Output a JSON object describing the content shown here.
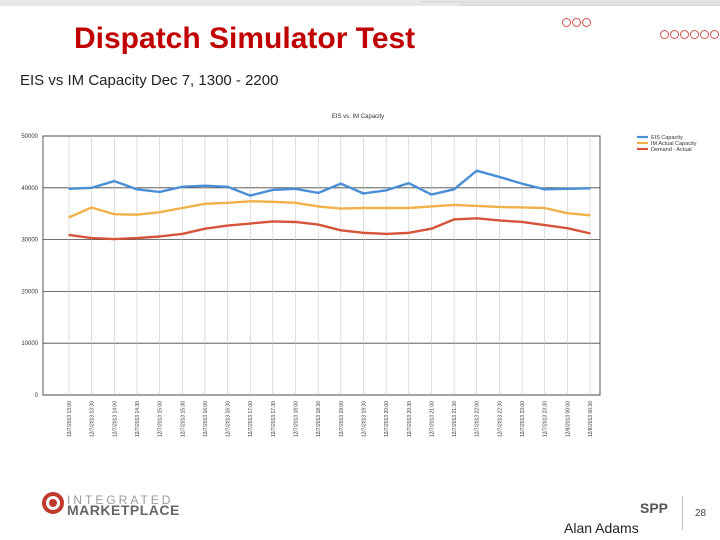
{
  "slide": {
    "title": "Dispatch Simulator Test",
    "subtitle": "EIS vs IM Capacity Dec 7, 1300 - 2200",
    "author": "Alan Adams",
    "page_number": "28",
    "logo_line1": "INTEGRATED",
    "logo_line2": "MARKETPLACE",
    "spp_logo": "SPP",
    "accent_color": "#c00000"
  },
  "chart_data": {
    "type": "line",
    "title": "EIS vs. IM Capacity",
    "xlabel": "",
    "ylabel": "",
    "ylim": [
      0,
      50000
    ],
    "yticks": [
      0,
      10000,
      20000,
      30000,
      40000,
      50000
    ],
    "grid": true,
    "legend_position": "top-right",
    "categories": [
      "12/7/2013 13:00",
      "12/7/2013 13:30",
      "12/7/2013 14:00",
      "12/7/2013 14:30",
      "12/7/2013 15:00",
      "12/7/2013 15:30",
      "12/7/2013 16:00",
      "12/7/2013 16:30",
      "12/7/2013 17:00",
      "12/7/2013 17:30",
      "12/7/2013 18:00",
      "12/7/2013 18:30",
      "12/7/2013 19:00",
      "12/7/2013 19:30",
      "12/7/2013 20:00",
      "12/7/2013 20:30",
      "12/7/2013 21:00",
      "12/7/2013 21:30",
      "12/7/2013 22:00",
      "12/7/2013 22:30",
      "12/7/2013 23:00",
      "12/7/2013 23:30",
      "12/8/2013 00:00",
      "12/8/2013 00:30"
    ],
    "series": [
      {
        "name": "EIS Capacity",
        "color": "#4a8fd6",
        "values": [
          39800,
          40000,
          41300,
          39700,
          39200,
          40200,
          40400,
          40200,
          38500,
          39600,
          39800,
          39000,
          40800,
          38900,
          39500,
          40900,
          38700,
          39700,
          43300,
          42100,
          40800,
          39700,
          39800,
          39900
        ]
      },
      {
        "name": "IM Actual Capacity",
        "color": "#f0b14a",
        "values": [
          34300,
          36200,
          34900,
          34800,
          35300,
          36100,
          36900,
          37100,
          37400,
          37300,
          37100,
          36400,
          36000,
          36100,
          36100,
          36100,
          36400,
          36700,
          36500,
          36300,
          36200,
          36100,
          35100,
          34700
        ]
      },
      {
        "name": "Demand - Actual",
        "color": "#d6543a",
        "values": [
          30900,
          30300,
          30100,
          30300,
          30600,
          31100,
          32100,
          32700,
          33100,
          33500,
          33400,
          32900,
          31800,
          31300,
          31100,
          31300,
          32100,
          33900,
          34100,
          33700,
          33400,
          32800,
          32200,
          31200
        ]
      }
    ]
  }
}
